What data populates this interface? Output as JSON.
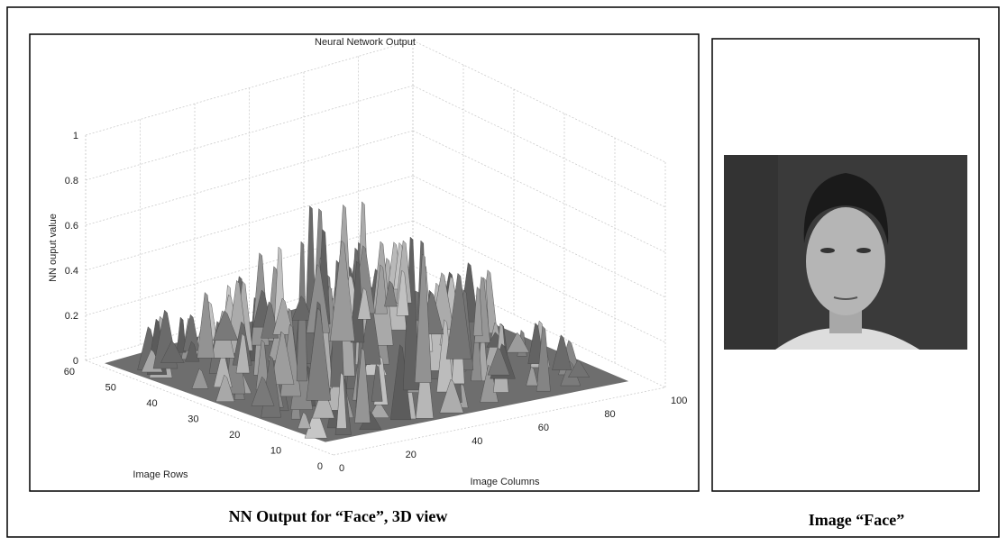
{
  "figure": {
    "plot": {
      "title": "Neural Network Output",
      "z_label": "NN ouput value",
      "z_ticks": [
        0,
        0.2,
        0.4,
        0.6,
        0.8,
        1
      ],
      "rows_label": "Image Rows",
      "rows_ticks": [
        60,
        50,
        40,
        30,
        20,
        10,
        0
      ],
      "columns_label": "Image Columns",
      "columns_ticks": [
        0,
        20,
        40,
        60,
        80,
        100
      ]
    },
    "left_caption": "NN Output for “Face”, 3D view",
    "right_caption": "Image “Face”"
  }
}
